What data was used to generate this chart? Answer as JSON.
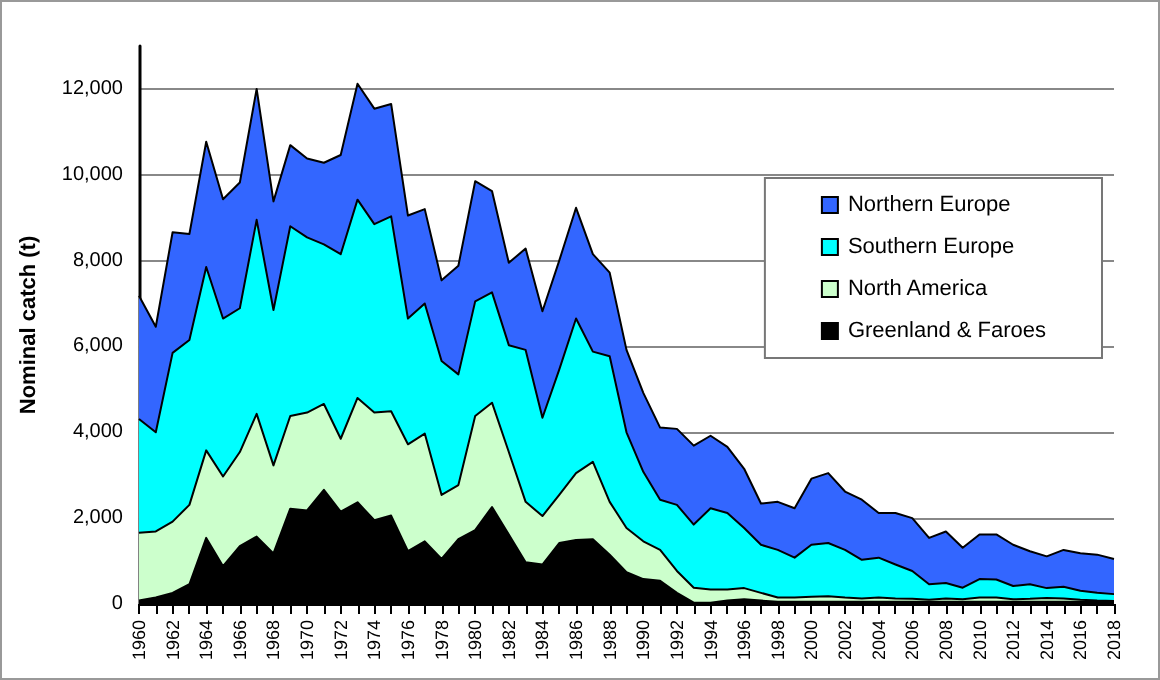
{
  "chart_data": {
    "type": "area",
    "stacked": true,
    "ylabel": "Nominal catch (t)",
    "categories": [
      "1960",
      null,
      "1962",
      null,
      "1964",
      null,
      "1966",
      null,
      "1968",
      null,
      "1970",
      null,
      "1972",
      null,
      "1974",
      null,
      "1976",
      null,
      "1978",
      null,
      "1980",
      null,
      "1982",
      null,
      "1984",
      null,
      "1986",
      null,
      "1988",
      null,
      "1990",
      null,
      "1992",
      null,
      "1994",
      null,
      "1996",
      null,
      "1998",
      null,
      "2000",
      null,
      "2002",
      null,
      "2004",
      null,
      "2006",
      null,
      "2008",
      null,
      "2010",
      null,
      "2012",
      null,
      "2014",
      null,
      "2016",
      null,
      "2018"
    ],
    "series": [
      {
        "name": "Greenland & Faroes",
        "color": "#000000",
        "values": [
          80,
          150,
          260,
          460,
          1540,
          880,
          1350,
          1570,
          1180,
          2220,
          2180,
          2660,
          2150,
          2370,
          1950,
          2060,
          1230,
          1460,
          1050,
          1510,
          1720,
          2260,
          1620,
          970,
          920,
          1420,
          1490,
          1510,
          1150,
          740,
          580,
          540,
          260,
          30,
          30,
          80,
          110,
          80,
          50,
          50,
          50,
          50,
          50,
          50,
          50,
          50,
          50,
          50,
          50,
          50,
          50,
          50,
          50,
          50,
          50,
          50,
          50,
          50,
          50
        ]
      },
      {
        "name": "North America",
        "color": "#ccffcc",
        "values": [
          1580,
          1540,
          1660,
          1850,
          2040,
          2090,
          2190,
          2860,
          2050,
          2160,
          2280,
          2000,
          1700,
          2430,
          2510,
          2430,
          2490,
          2510,
          1490,
          1260,
          2660,
          2430,
          1920,
          1410,
          1130,
          1120,
          1560,
          1800,
          1230,
          1030,
          880,
          720,
          510,
          350,
          310,
          260,
          260,
          180,
          100,
          100,
          120,
          130,
          100,
          80,
          100,
          80,
          70,
          50,
          80,
          60,
          100,
          100,
          60,
          70,
          90,
          80,
          50,
          30,
          20
        ]
      },
      {
        "name": "Southern Europe",
        "color": "#00ffff",
        "values": [
          2650,
          2310,
          3930,
          3840,
          4270,
          3680,
          3350,
          4520,
          3620,
          4420,
          4080,
          3720,
          4300,
          4620,
          4390,
          4540,
          2930,
          3030,
          3120,
          2580,
          2670,
          2570,
          2490,
          3540,
          2290,
          2920,
          3600,
          2570,
          3390,
          2230,
          1620,
          1170,
          1540,
          1470,
          1890,
          1780,
          1400,
          1120,
          1110,
          930,
          1210,
          1240,
          1110,
          900,
          930,
          790,
          650,
          360,
          360,
          270,
          430,
          420,
          310,
          340,
          230,
          270,
          210,
          180,
          160
        ]
      },
      {
        "name": "Northern Europe",
        "color": "#3366ff",
        "values": [
          2870,
          2460,
          2810,
          2470,
          2920,
          2780,
          2930,
          3050,
          2530,
          1890,
          1840,
          1900,
          2310,
          2700,
          2690,
          2620,
          2400,
          2200,
          1880,
          2530,
          2800,
          2360,
          1920,
          2360,
          2480,
          2540,
          2580,
          2270,
          1950,
          1920,
          1840,
          1680,
          1770,
          1840,
          1690,
          1540,
          1380,
          960,
          1120,
          1150,
          1540,
          1630,
          1360,
          1400,
          1040,
          1200,
          1230,
          1080,
          1200,
          930,
          1040,
          1050,
          960,
          770,
          740,
          860,
          870,
          890,
          820
        ]
      }
    ],
    "ylim": [
      0,
      13000
    ],
    "yticks": [
      0,
      {
        "value": 2000,
        "label": "2,000"
      },
      {
        "value": 4000,
        "label": "4,000"
      },
      {
        "value": 6000,
        "label": "6,000"
      },
      {
        "value": 8000,
        "label": "8,000"
      },
      {
        "value": 10000,
        "label": "10,000"
      },
      {
        "value": 12000,
        "label": "12,000"
      }
    ],
    "grid": "y",
    "legend": "top right"
  }
}
